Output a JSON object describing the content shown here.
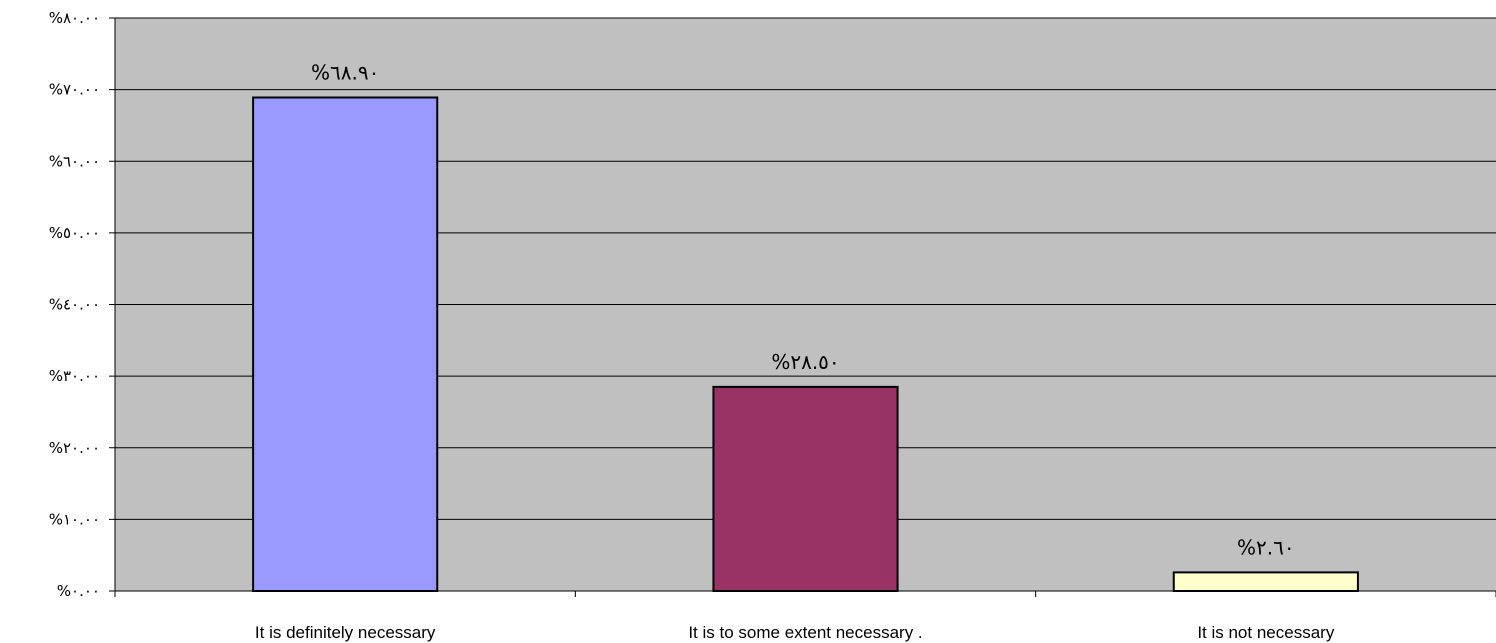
{
  "chart_data": {
    "type": "bar",
    "categories": [
      "It is definitely necessary",
      "It is to some extent necessary .",
      "It is not necessary"
    ],
    "values": [
      68.9,
      28.5,
      2.6
    ],
    "data_labels": [
      "%٦٨.٩٠",
      "%٢٨.٥٠",
      "%٢.٦٠"
    ],
    "bar_colors": [
      "#9999ff",
      "#993366",
      "#ffffcc"
    ],
    "ylim": [
      0,
      80
    ],
    "ytick_values": [
      0,
      10,
      20,
      30,
      40,
      50,
      60,
      70,
      80
    ],
    "ytick_labels": [
      "%٠.٠٠",
      "%١٠.٠٠",
      "%٢٠.٠٠",
      "%٣٠.٠٠",
      "%٤٠.٠٠",
      "%٥٠.٠٠",
      "%٦٠.٠٠",
      "%٧٠.٠٠",
      "%٨٠.٠٠"
    ],
    "plot_background": "#c0c0c0",
    "grid": true,
    "legend": "none"
  }
}
